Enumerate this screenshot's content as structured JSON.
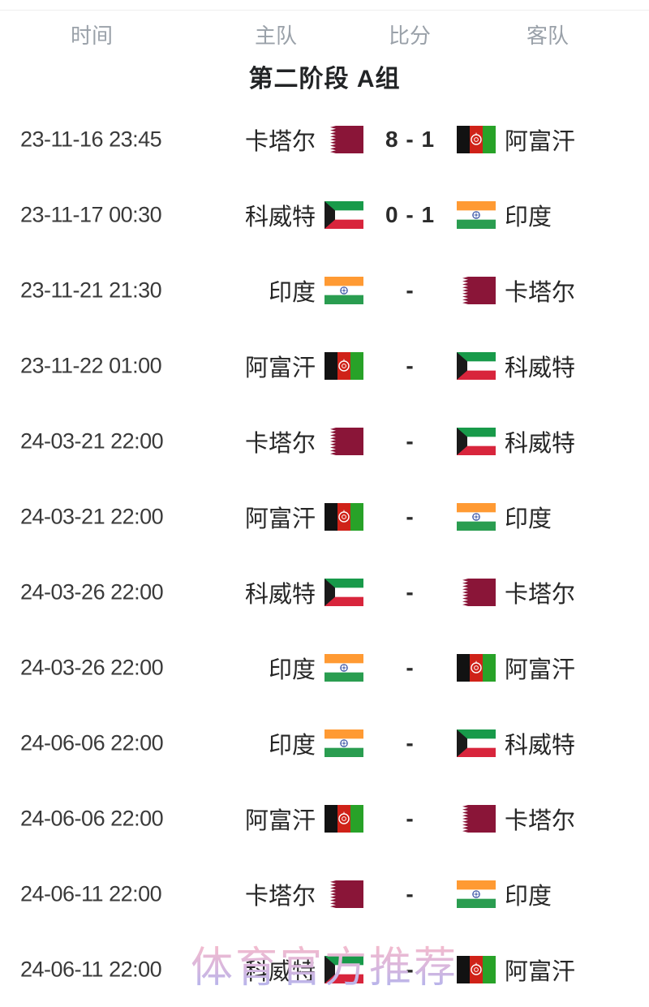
{
  "header": {
    "time_label": "时间",
    "home_label": "主队",
    "score_label": "比分",
    "away_label": "客队"
  },
  "group_title": "第二阶段 A组",
  "watermark_text": "体育官方推荐",
  "flag_colors": {
    "qatar_maroon": "#8a1538",
    "kuwait_green": "#189a4a",
    "kuwait_red": "#d8253c",
    "kuwait_black": "#1a1a1a",
    "afghan_black": "#121212",
    "afghan_red": "#cf2218",
    "afghan_green": "#28a228",
    "india_saffron": "#ff9a33",
    "india_green": "#2a9d50",
    "india_navy": "#3c55a5",
    "white": "#ffffff"
  },
  "matches": [
    {
      "time": "23-11-16 23:45",
      "home": "卡塔尔",
      "home_flag": "qatar",
      "score": "8 - 1",
      "away": "阿富汗",
      "away_flag": "afghanistan"
    },
    {
      "time": "23-11-17 00:30",
      "home": "科威特",
      "home_flag": "kuwait",
      "score": "0 - 1",
      "away": "印度",
      "away_flag": "india"
    },
    {
      "time": "23-11-21 21:30",
      "home": "印度",
      "home_flag": "india",
      "score": "-",
      "away": "卡塔尔",
      "away_flag": "qatar"
    },
    {
      "time": "23-11-22 01:00",
      "home": "阿富汗",
      "home_flag": "afghanistan",
      "score": "-",
      "away": "科威特",
      "away_flag": "kuwait"
    },
    {
      "time": "24-03-21 22:00",
      "home": "卡塔尔",
      "home_flag": "qatar",
      "score": "-",
      "away": "科威特",
      "away_flag": "kuwait"
    },
    {
      "time": "24-03-21 22:00",
      "home": "阿富汗",
      "home_flag": "afghanistan",
      "score": "-",
      "away": "印度",
      "away_flag": "india"
    },
    {
      "time": "24-03-26 22:00",
      "home": "科威特",
      "home_flag": "kuwait",
      "score": "-",
      "away": "卡塔尔",
      "away_flag": "qatar"
    },
    {
      "time": "24-03-26 22:00",
      "home": "印度",
      "home_flag": "india",
      "score": "-",
      "away": "阿富汗",
      "away_flag": "afghanistan"
    },
    {
      "time": "24-06-06 22:00",
      "home": "印度",
      "home_flag": "india",
      "score": "-",
      "away": "科威特",
      "away_flag": "kuwait"
    },
    {
      "time": "24-06-06 22:00",
      "home": "阿富汗",
      "home_flag": "afghanistan",
      "score": "-",
      "away": "卡塔尔",
      "away_flag": "qatar"
    },
    {
      "time": "24-06-11 22:00",
      "home": "卡塔尔",
      "home_flag": "qatar",
      "score": "-",
      "away": "印度",
      "away_flag": "india"
    },
    {
      "time": "24-06-11 22:00",
      "home": "科威特",
      "home_flag": "kuwait",
      "score": "-",
      "away": "阿富汗",
      "away_flag": "afghanistan"
    }
  ]
}
